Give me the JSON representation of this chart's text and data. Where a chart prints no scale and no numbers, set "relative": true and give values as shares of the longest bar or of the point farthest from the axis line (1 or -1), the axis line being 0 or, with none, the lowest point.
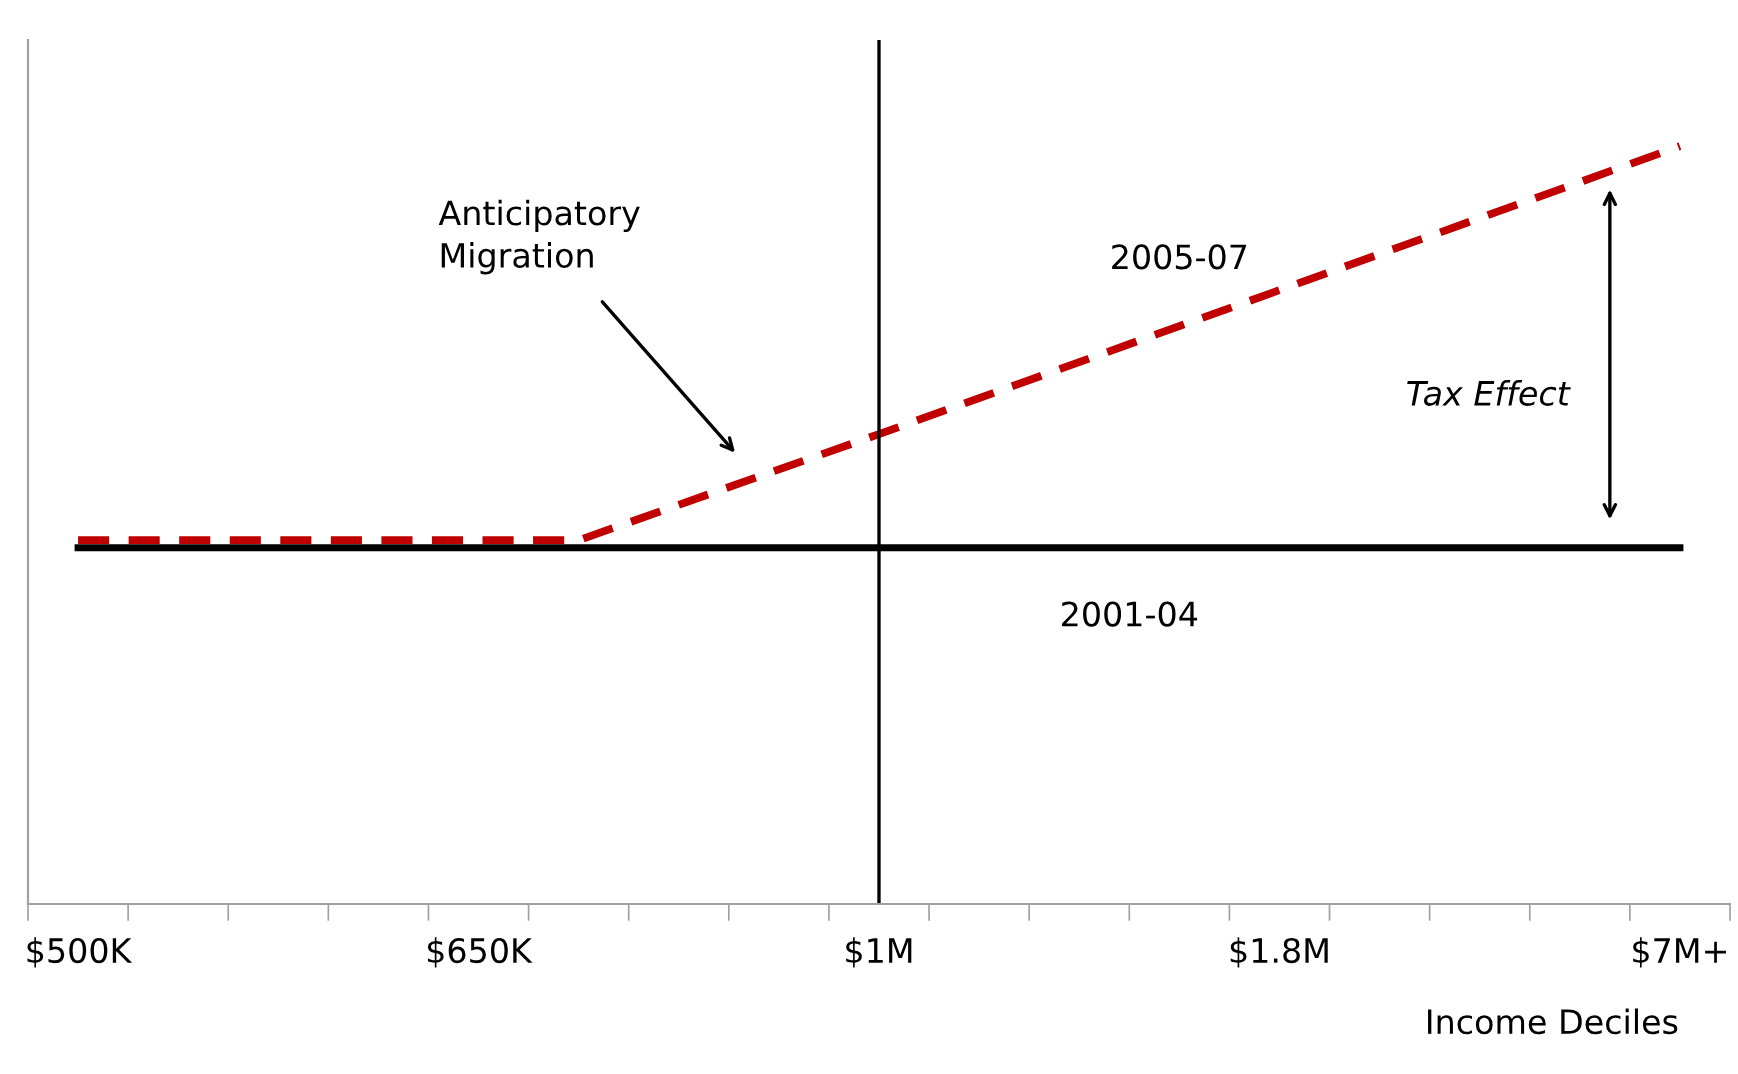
{
  "chart_data": {
    "type": "line",
    "relative": true,
    "xlabel": "Income Deciles",
    "categories": [
      "$500K",
      null,
      null,
      null,
      "$650K",
      null,
      null,
      null,
      "$1M",
      null,
      null,
      null,
      "$1.8M",
      null,
      null,
      null,
      "$7M+"
    ],
    "series": [
      {
        "name": "2001-04",
        "color": "#000000",
        "line_style": "solid",
        "values": [
          0.47,
          0.47,
          0.47,
          0.47,
          0.47,
          0.47,
          0.47,
          0.47,
          0.47,
          0.47,
          0.47,
          0.47,
          0.47,
          0.47,
          0.47,
          0.47,
          0.47
        ]
      },
      {
        "name": "2005-07",
        "color": "#c00000",
        "line_style": "dashed",
        "values": [
          0.48,
          null,
          null,
          null,
          null,
          0.48,
          null,
          null,
          0.62,
          null,
          null,
          null,
          null,
          null,
          null,
          null,
          1
        ]
      }
    ],
    "ref_lines": [
      {
        "axis": "x",
        "value": "$1M",
        "color": "#000000"
      }
    ],
    "annotations": [
      "Anticipatory\nMigration",
      "Tax Effect"
    ],
    "grid": false,
    "legend": false,
    "marker": "none"
  }
}
